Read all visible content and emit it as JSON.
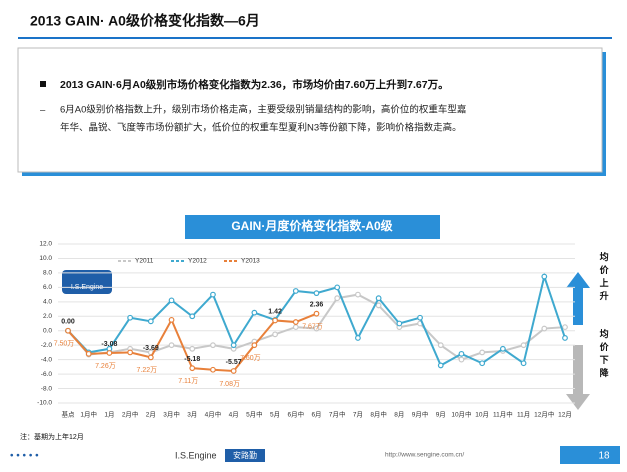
{
  "header": {
    "title": "2013 GAIN· A0级价格变化指数—6月"
  },
  "summary": {
    "bullet": "2013 GAIN·6月A0级别市场价格变化指数为2.36，市场均价由7.60万上升到7.67万。",
    "detail_line1": "6月A0级别价格指数上升，级别市场价格走高，主要受级别销量结构的影响，高价位的权重车型嘉",
    "detail_line2": "年华、晶锐、飞度等市场份额扩大，低价位的权重车型夏利N3等份额下降，影响价格指数走高。"
  },
  "chart_data": {
    "type": "line",
    "title": "GAIN·月度价格变化指数-A0级",
    "logo": "I.S.Engine",
    "categories": [
      "基点",
      "1月中",
      "1月",
      "2月中",
      "2月",
      "3月中",
      "3月",
      "4月中",
      "4月",
      "5月中",
      "5月",
      "6月中",
      "6月",
      "7月中",
      "7月",
      "8月中",
      "8月",
      "9月中",
      "9月",
      "10月中",
      "10月",
      "11月中",
      "11月",
      "12月中",
      "12月"
    ],
    "ylim": [
      -10,
      12
    ],
    "yticks": [
      {
        "value": 12,
        "label": "12.0"
      },
      {
        "value": 10,
        "label": "10.0"
      },
      {
        "value": 8,
        "label": "8.0"
      },
      {
        "value": 6,
        "label": "6.0"
      },
      {
        "value": 4,
        "label": "4.0"
      },
      {
        "value": 2,
        "label": "2.0"
      },
      {
        "value": 0,
        "label": "0.0"
      },
      {
        "value": -2,
        "label": "-2.0"
      },
      {
        "value": -4,
        "label": "-4.0"
      },
      {
        "value": -6,
        "label": "-6.0"
      },
      {
        "value": -8,
        "label": "-8.0"
      },
      {
        "value": -10,
        "label": "-10.0"
      }
    ],
    "grid": true,
    "series": [
      {
        "name": "Y2011",
        "color": "#c8c8c8",
        "values": [
          0,
          -3.3,
          -3.0,
          -2.5,
          -3.0,
          -2.0,
          -2.5,
          -2.0,
          -2.5,
          -1.5,
          -0.5,
          0.5,
          0.3,
          4.5,
          5.0,
          3.5,
          0.5,
          1.0,
          -2.0,
          -4.0,
          -3.0,
          -2.8,
          -2.0,
          0.3,
          0.5
        ]
      },
      {
        "name": "Y2012",
        "color": "#3fa9cf",
        "values": [
          0,
          -3.0,
          -2.5,
          1.8,
          1.3,
          4.2,
          2.0,
          5.0,
          -2.0,
          2.5,
          1.5,
          5.5,
          5.2,
          6.0,
          -1.0,
          4.5,
          1.0,
          1.8,
          -4.8,
          -3.2,
          -4.5,
          -2.5,
          -4.5,
          7.5,
          -1.0
        ]
      },
      {
        "name": "Y2013",
        "color": "#e8803a",
        "values": [
          0,
          -3.2,
          -3.08,
          -3.0,
          -3.69,
          1.5,
          -5.18,
          -5.4,
          -5.57,
          -2.0,
          1.42,
          1.2,
          2.36,
          null,
          null,
          null,
          null,
          null,
          null,
          null,
          null,
          null,
          null,
          null,
          null
        ],
        "value_labels": [
          "0.00",
          null,
          "-3.08",
          null,
          "-3.69",
          null,
          "-5.18",
          null,
          "-5.57",
          null,
          "1.42",
          null,
          "2.36",
          null,
          null,
          null,
          null,
          null,
          null,
          null,
          null,
          null,
          null,
          null,
          null
        ],
        "price_labels": [
          "7.50万",
          null,
          "7.26万",
          null,
          "7.22万",
          null,
          "7.11万",
          null,
          "7.08万",
          "7.60万",
          null,
          null,
          "7.67万",
          null,
          null,
          null,
          null,
          null,
          null,
          null,
          null,
          null,
          null,
          null,
          null
        ]
      }
    ],
    "side_labels": {
      "up": "均价上升",
      "down": "均价下降"
    },
    "note": "注：基期为上年12月"
  },
  "footer": {
    "brand": "I.S.Engine",
    "brand_cn": "安路勤",
    "url": "http://www.sengine.com.cn/",
    "page": "18"
  }
}
